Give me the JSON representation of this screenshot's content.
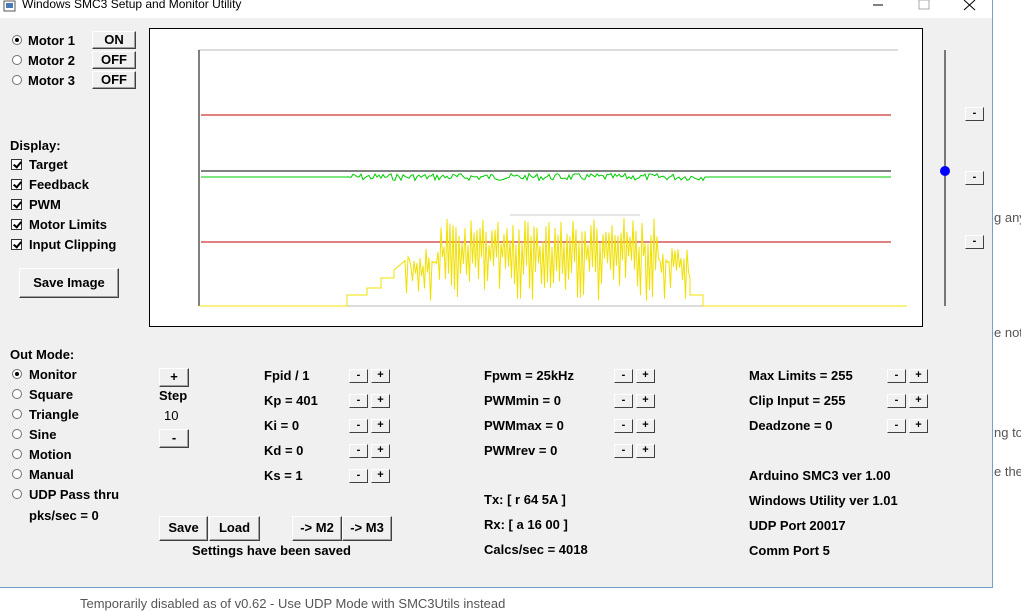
{
  "window": {
    "title": "Windows SMC3 Setup and Monitor Utility"
  },
  "motors": [
    {
      "label": "Motor 1",
      "selected": true,
      "state": "ON"
    },
    {
      "label": "Motor 2",
      "selected": false,
      "state": "OFF"
    },
    {
      "label": "Motor 3",
      "selected": false,
      "state": "OFF"
    }
  ],
  "display": {
    "heading": "Display:",
    "options": [
      {
        "label": "Target",
        "checked": true
      },
      {
        "label": "Feedback",
        "checked": true
      },
      {
        "label": "PWM",
        "checked": true
      },
      {
        "label": "Motor Limits",
        "checked": true
      },
      {
        "label": "Input Clipping",
        "checked": true
      }
    ],
    "save_button": "Save Image"
  },
  "out_mode": {
    "heading": "Out Mode:",
    "options": [
      {
        "label": "Monitor",
        "selected": true
      },
      {
        "label": "Square",
        "selected": false
      },
      {
        "label": "Triangle",
        "selected": false
      },
      {
        "label": "Sine",
        "selected": false
      },
      {
        "label": "Motion",
        "selected": false
      },
      {
        "label": "Manual",
        "selected": false
      },
      {
        "label": "UDP Pass thru",
        "selected": false
      }
    ],
    "rate": "pks/sec = 0"
  },
  "step": {
    "plus": "+",
    "label": "Step",
    "value": 10,
    "minus": "-"
  },
  "params": [
    [
      {
        "label": "Fpid / 1",
        "buttons": [
          "-",
          "+"
        ]
      },
      {
        "label": "Kp = 401",
        "buttons": [
          "-",
          "+"
        ]
      },
      {
        "label": "Ki = 0",
        "buttons": [
          "-",
          "+"
        ]
      },
      {
        "label": "Kd = 0",
        "buttons": [
          "-",
          "+"
        ]
      },
      {
        "label": "Ks = 1",
        "buttons": [
          "-",
          "+"
        ]
      }
    ],
    [
      {
        "label": "Fpwm = 25kHz",
        "buttons": [
          "-",
          "+"
        ]
      },
      {
        "label": "PWMmin = 0",
        "buttons": [
          "-",
          "+"
        ]
      },
      {
        "label": "PWMmax = 0",
        "buttons": [
          "-",
          "+"
        ]
      },
      {
        "label": "PWMrev = 0",
        "buttons": [
          "-",
          "+"
        ]
      }
    ],
    [
      {
        "label": "Max Limits = 255",
        "buttons": [
          "-",
          "+"
        ]
      },
      {
        "label": "Clip Input = 255",
        "buttons": [
          "-",
          "+"
        ]
      },
      {
        "label": "Deadzone = 0",
        "buttons": [
          "-",
          "+"
        ]
      }
    ]
  ],
  "status": [
    "Tx: [ r 64 5A ]",
    "Rx: [ a 16 00 ]",
    "Calcs/sec = 4018"
  ],
  "info": [
    "Arduino SMC3 ver 1.00",
    "Windows Utility ver 1.01",
    "UDP Port 20017",
    "Comm Port 5"
  ],
  "actions": {
    "buttons": [
      "Save",
      "Load",
      "-> M2",
      "-> M3"
    ],
    "message": "Settings have been saved"
  },
  "slider": {
    "buttons": [
      "-",
      "-",
      "-"
    ]
  },
  "background": {
    "fragments": [
      "g any",
      "e not",
      "ng to",
      "e the"
    ],
    "footer": "Temporarily disabled as of v0.62 - Use UDP Mode with SMC3Utils instead"
  }
}
